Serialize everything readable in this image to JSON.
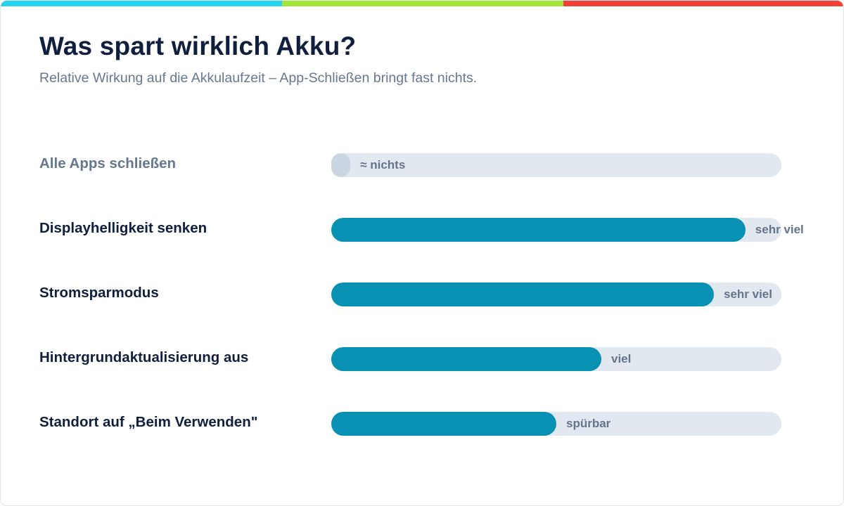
{
  "title": "Was spart wirklich Akku?",
  "subtitle": "Relative Wirkung auf die Akkulaufzeit – App-Schließen bringt fast nichts.",
  "colors": {
    "topbar": [
      "#22d3ee",
      "#a3e635",
      "#f43f33"
    ],
    "bar": "#0891b2",
    "bar_none": "#cbd5e1",
    "track": "#e2e8f0"
  },
  "chart_data": {
    "type": "bar",
    "orientation": "horizontal",
    "categories": [
      "Alle Apps schließen",
      "Displayhelligkeit senken",
      "Stromsparmodus",
      "Hintergrundaktualisierung aus",
      "Standort auf „Beim Verwenden\""
    ],
    "values": [
      0.04,
      0.92,
      0.85,
      0.6,
      0.5
    ],
    "value_labels": [
      "≈ nichts",
      "sehr viel",
      "sehr viel",
      "viel",
      "spürbar"
    ],
    "xlim": [
      0,
      1
    ],
    "grid": false,
    "legend": "none"
  }
}
